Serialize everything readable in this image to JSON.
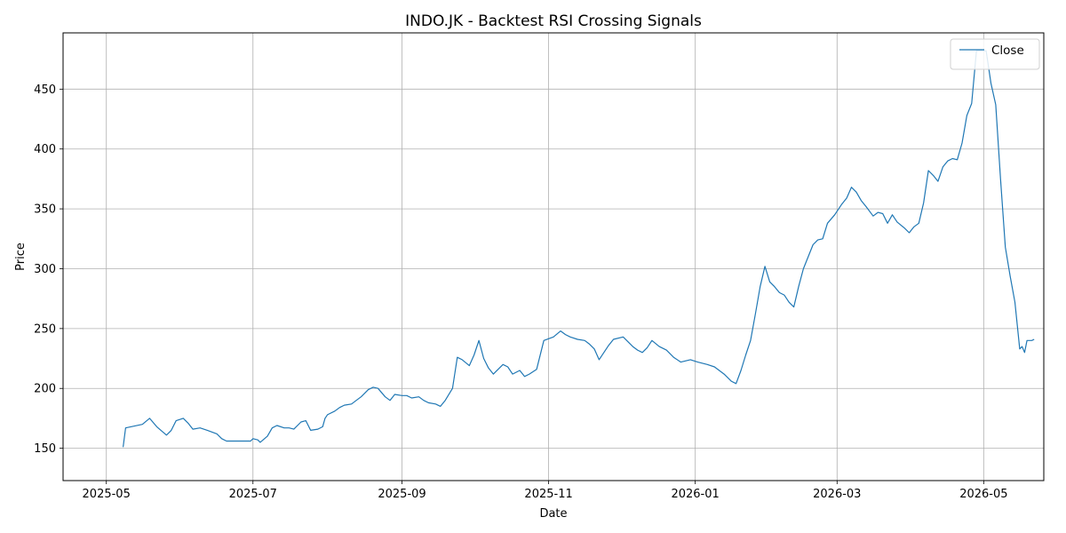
{
  "chart_data": {
    "type": "line",
    "title": "INDO.JK - Backtest RSI Crossing Signals",
    "xlabel": "Date",
    "ylabel": "Price",
    "xlim": [
      "2025-04-13",
      "2026-05-26"
    ],
    "ylim": [
      123,
      497
    ],
    "grid": true,
    "legend_position": "top-right",
    "x_ticks": [
      "2025-05",
      "2025-07",
      "2025-09",
      "2025-11",
      "2026-01",
      "2026-03",
      "2026-05"
    ],
    "y_ticks": [
      150,
      200,
      250,
      300,
      350,
      400,
      450
    ],
    "colors": {
      "close": "#1f77b4",
      "sma": "#ff7f0e",
      "buy": "#008000",
      "sell": "#ff0000"
    },
    "series": [
      {
        "name": "Close",
        "style": "solid",
        "points": [
          [
            "2025-05-08",
            151
          ],
          [
            "2025-05-09",
            167
          ],
          [
            "2025-05-16",
            170
          ],
          [
            "2025-05-19",
            175
          ],
          [
            "2025-05-22",
            168
          ],
          [
            "2025-05-26",
            161
          ],
          [
            "2025-05-28",
            165
          ],
          [
            "2025-05-30",
            173
          ],
          [
            "2025-06-02",
            175
          ],
          [
            "2025-06-04",
            171
          ],
          [
            "2025-06-06",
            166
          ],
          [
            "2025-06-09",
            167
          ],
          [
            "2025-06-12",
            165
          ],
          [
            "2025-06-16",
            162
          ],
          [
            "2025-06-18",
            158
          ],
          [
            "2025-06-20",
            156
          ],
          [
            "2025-06-23",
            156
          ],
          [
            "2025-06-27",
            156
          ],
          [
            "2025-06-30",
            156
          ],
          [
            "2025-07-01",
            158
          ],
          [
            "2025-07-03",
            157
          ],
          [
            "2025-07-04",
            155
          ],
          [
            "2025-07-07",
            160
          ],
          [
            "2025-07-09",
            167
          ],
          [
            "2025-07-11",
            169
          ],
          [
            "2025-07-14",
            167
          ],
          [
            "2025-07-16",
            167
          ],
          [
            "2025-07-18",
            166
          ],
          [
            "2025-07-21",
            172
          ],
          [
            "2025-07-23",
            173
          ],
          [
            "2025-07-25",
            165
          ],
          [
            "2025-07-28",
            166
          ],
          [
            "2025-07-30",
            168
          ],
          [
            "2025-07-31",
            175
          ],
          [
            "2025-08-01",
            178
          ],
          [
            "2025-08-04",
            181
          ],
          [
            "2025-08-06",
            184
          ],
          [
            "2025-08-08",
            186
          ],
          [
            "2025-08-11",
            187
          ],
          [
            "2025-08-13",
            190
          ],
          [
            "2025-08-15",
            193
          ],
          [
            "2025-08-18",
            199
          ],
          [
            "2025-08-20",
            201
          ],
          [
            "2025-08-22",
            200
          ],
          [
            "2025-08-25",
            193
          ],
          [
            "2025-08-27",
            190
          ],
          [
            "2025-08-29",
            195
          ],
          [
            "2025-09-01",
            194
          ],
          [
            "2025-09-03",
            194
          ],
          [
            "2025-09-05",
            192
          ],
          [
            "2025-09-08",
            193
          ],
          [
            "2025-09-10",
            190
          ],
          [
            "2025-09-12",
            188
          ],
          [
            "2025-09-15",
            187
          ],
          [
            "2025-09-17",
            185
          ],
          [
            "2025-09-19",
            190
          ],
          [
            "2025-09-22",
            200
          ],
          [
            "2025-09-24",
            226
          ],
          [
            "2025-09-26",
            224
          ],
          [
            "2025-09-29",
            219
          ],
          [
            "2025-10-01",
            228
          ],
          [
            "2025-10-03",
            240
          ],
          [
            "2025-10-05",
            225
          ],
          [
            "2025-10-07",
            217
          ],
          [
            "2025-10-09",
            212
          ],
          [
            "2025-10-13",
            220
          ],
          [
            "2025-10-15",
            218
          ],
          [
            "2025-10-17",
            212
          ],
          [
            "2025-10-20",
            215
          ],
          [
            "2025-10-22",
            210
          ],
          [
            "2025-10-24",
            212
          ],
          [
            "2025-10-27",
            216
          ],
          [
            "2025-10-30",
            240
          ],
          [
            "2025-11-03",
            243
          ],
          [
            "2025-11-06",
            248
          ],
          [
            "2025-11-08",
            245
          ],
          [
            "2025-11-10",
            243
          ],
          [
            "2025-11-13",
            241
          ],
          [
            "2025-11-16",
            240
          ],
          [
            "2025-11-18",
            237
          ],
          [
            "2025-11-20",
            233
          ],
          [
            "2025-11-22",
            224
          ],
          [
            "2025-11-24",
            230
          ],
          [
            "2025-11-26",
            236
          ],
          [
            "2025-11-28",
            241
          ],
          [
            "2025-12-02",
            243
          ],
          [
            "2025-12-06",
            235
          ],
          [
            "2025-12-08",
            232
          ],
          [
            "2025-12-10",
            230
          ],
          [
            "2025-12-12",
            234
          ],
          [
            "2025-12-14",
            240
          ],
          [
            "2025-12-17",
            235
          ],
          [
            "2025-12-20",
            232
          ],
          [
            "2025-12-23",
            226
          ],
          [
            "2025-12-26",
            222
          ],
          [
            "2025-12-30",
            224
          ],
          [
            "2026-01-02",
            222
          ],
          [
            "2026-01-06",
            220
          ],
          [
            "2026-01-09",
            218
          ],
          [
            "2026-01-13",
            212
          ],
          [
            "2026-01-16",
            206
          ],
          [
            "2026-01-18",
            204
          ],
          [
            "2026-01-20",
            215
          ],
          [
            "2026-01-22",
            228
          ],
          [
            "2026-01-24",
            240
          ],
          [
            "2026-01-26",
            262
          ],
          [
            "2026-01-28",
            285
          ],
          [
            "2026-01-30",
            302
          ],
          [
            "2026-02-01",
            289
          ],
          [
            "2026-02-03",
            285
          ],
          [
            "2026-02-05",
            280
          ],
          [
            "2026-02-07",
            278
          ],
          [
            "2026-02-09",
            272
          ],
          [
            "2026-02-11",
            268
          ],
          [
            "2026-02-13",
            285
          ],
          [
            "2026-02-15",
            300
          ],
          [
            "2026-02-17",
            310
          ],
          [
            "2026-02-19",
            320
          ],
          [
            "2026-02-21",
            324
          ],
          [
            "2026-02-23",
            325
          ],
          [
            "2026-02-25",
            338
          ],
          [
            "2026-02-28",
            345
          ],
          [
            "2026-03-03",
            354
          ],
          [
            "2026-03-05",
            359
          ],
          [
            "2026-03-07",
            368
          ],
          [
            "2026-03-09",
            364
          ],
          [
            "2026-03-11",
            357
          ],
          [
            "2026-03-13",
            352
          ],
          [
            "2026-03-16",
            344
          ],
          [
            "2026-03-18",
            347
          ],
          [
            "2026-03-20",
            346
          ],
          [
            "2026-03-22",
            338
          ],
          [
            "2026-03-24",
            345
          ],
          [
            "2026-03-26",
            339
          ],
          [
            "2026-03-29",
            334
          ],
          [
            "2026-03-31",
            330
          ],
          [
            "2026-04-02",
            335
          ],
          [
            "2026-04-04",
            338
          ],
          [
            "2026-04-06",
            355
          ],
          [
            "2026-04-08",
            382
          ],
          [
            "2026-04-10",
            378
          ],
          [
            "2026-04-12",
            373
          ],
          [
            "2026-04-14",
            385
          ],
          [
            "2026-04-16",
            390
          ],
          [
            "2026-04-18",
            392
          ],
          [
            "2026-04-20",
            391
          ],
          [
            "2026-04-22",
            405
          ],
          [
            "2026-04-24",
            428
          ],
          [
            "2026-04-26",
            438
          ],
          [
            "2026-04-28",
            482
          ],
          [
            "2026-04-30",
            482
          ],
          [
            "2026-05-02",
            482
          ],
          [
            "2026-05-04",
            455
          ],
          [
            "2026-05-06",
            437
          ],
          [
            "2026-05-08",
            375
          ],
          [
            "2026-05-10",
            318
          ],
          [
            "2026-05-12",
            294
          ],
          [
            "2026-05-14",
            272
          ],
          [
            "2026-05-16",
            233
          ],
          [
            "2026-05-17",
            235
          ],
          [
            "2026-05-18",
            230
          ],
          [
            "2026-05-19",
            240
          ],
          [
            "2026-05-21",
            240
          ],
          [
            "2026-05-22",
            241
          ]
        ]
      }
    ]
  }
}
